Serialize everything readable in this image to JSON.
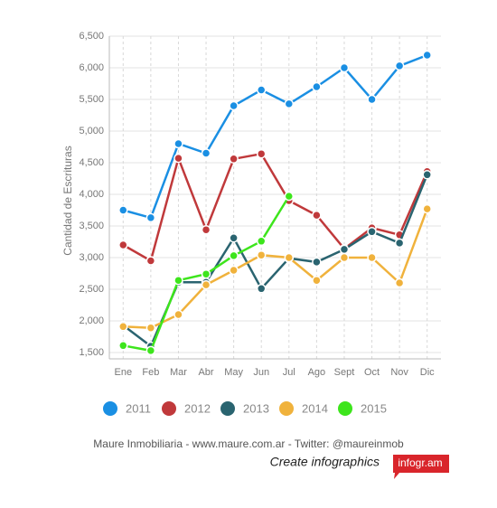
{
  "chart_data": {
    "type": "line",
    "y_label": "Cantidad de Escrituras",
    "categories": [
      "Ene",
      "Feb",
      "Mar",
      "Abr",
      "May",
      "Jun",
      "Jul",
      "Ago",
      "Sept",
      "Oct",
      "Nov",
      "Dic"
    ],
    "series": [
      {
        "name": "2011",
        "color": "#1a8fe3",
        "values": [
          3750,
          3630,
          4800,
          4650,
          5400,
          5650,
          5430,
          5700,
          6000,
          5500,
          6030,
          6200
        ]
      },
      {
        "name": "2012",
        "color": "#c0393b",
        "values": [
          3200,
          2950,
          4570,
          3440,
          4560,
          4640,
          3900,
          3670,
          3140,
          3470,
          3360,
          4360
        ]
      },
      {
        "name": "2013",
        "color": "#2a6470",
        "values": [
          1930,
          1600,
          2610,
          2610,
          3310,
          2510,
          2990,
          2930,
          3130,
          3410,
          3230,
          4310
        ]
      },
      {
        "name": "2014",
        "color": "#f0b23c",
        "values": [
          1910,
          1890,
          2100,
          2570,
          2800,
          3040,
          3000,
          2640,
          3000,
          3000,
          2600,
          3770
        ]
      },
      {
        "name": "2015",
        "color": "#3de51c",
        "values": [
          1610,
          1530,
          2640,
          2740,
          3030,
          3260,
          3970,
          null,
          null,
          null,
          null,
          null
        ]
      }
    ],
    "ylim": [
      1400,
      6500
    ],
    "yticks": [
      {
        "value": 1500,
        "label": "1,500"
      },
      {
        "value": 2000,
        "label": "2,000"
      },
      {
        "value": 2500,
        "label": "2,500"
      },
      {
        "value": 3000,
        "label": "3,000"
      },
      {
        "value": 3500,
        "label": "3,500"
      },
      {
        "value": 4000,
        "label": "4,000"
      },
      {
        "value": 4500,
        "label": "4,500"
      },
      {
        "value": 5000,
        "label": "5,000"
      },
      {
        "value": 5500,
        "label": "5,500"
      },
      {
        "value": 6000,
        "label": "6,000"
      },
      {
        "value": 6500,
        "label": "6,500"
      }
    ],
    "grid": true
  },
  "footer": {
    "credit": "Maure Inmobiliaria - www.maure.com.ar - Twitter: @maureinmob",
    "cta": "Create infographics",
    "brand": "infogr.am"
  }
}
